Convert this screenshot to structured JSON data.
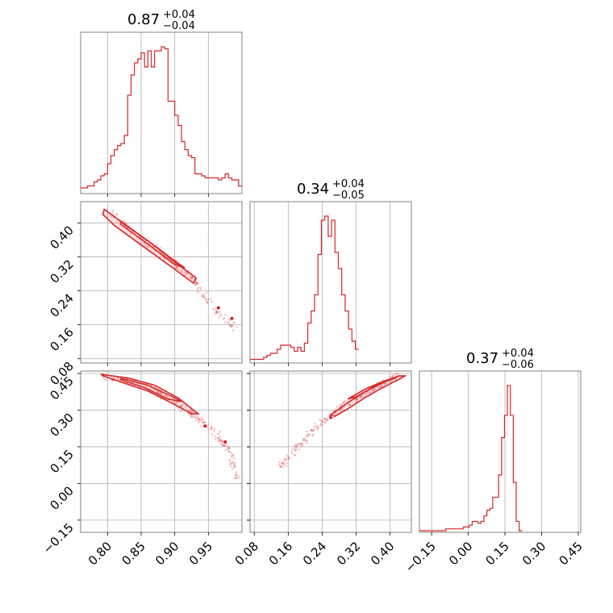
{
  "chart_data": {
    "type": "corner",
    "color": "#d62728",
    "parameters": [
      {
        "index": 0,
        "title": {
          "value": "0.87",
          "plus": "+0.04",
          "minus": "−0.04"
        },
        "range": [
          0.76,
          1.0
        ],
        "ticks": [
          0.8,
          0.85,
          0.9,
          0.95
        ],
        "tick_labels": [
          "0.80",
          "0.85",
          "0.90",
          "0.95"
        ],
        "hist_edges_start": 0.76,
        "hist_edge_step": 0.005,
        "hist_counts": [
          2,
          2,
          3,
          3,
          5,
          6,
          8,
          9,
          14,
          18,
          21,
          23,
          24,
          28,
          48,
          58,
          64,
          66,
          69,
          62,
          70,
          62,
          70,
          70,
          72,
          71,
          45,
          45,
          38,
          33,
          25,
          21,
          18,
          17,
          9,
          9,
          8,
          7,
          7,
          7,
          7,
          6,
          7,
          9,
          7,
          6,
          6,
          3
        ]
      },
      {
        "index": 1,
        "title": {
          "value": "0.34",
          "plus": "+0.04",
          "minus": "−0.05"
        },
        "range": [
          0.07,
          0.45
        ],
        "ticks": [
          0.08,
          0.16,
          0.24,
          0.32,
          0.4
        ],
        "tick_labels": [
          "0.08",
          "0.16",
          "0.24",
          "0.32",
          "0.40"
        ],
        "hist_edges_start": 0.07,
        "hist_edge_step": 0.008,
        "hist_counts": [
          1,
          1,
          1,
          1,
          2,
          3,
          4,
          4,
          6,
          8,
          8,
          8,
          7,
          5,
          7,
          5,
          9,
          19,
          25,
          33,
          53,
          70,
          72,
          62,
          70,
          54,
          46,
          33,
          25,
          16,
          10,
          6
        ]
      },
      {
        "index": 2,
        "title": {
          "value": "0.37",
          "plus": "+0.04",
          "minus": "−0.06"
        },
        "range": [
          -0.2,
          0.46
        ],
        "ticks": [
          -0.15,
          0.0,
          0.15,
          0.3,
          0.45
        ],
        "tick_labels": [
          "−0.15",
          "0.00",
          "0.15",
          "0.30",
          "0.45"
        ],
        "hist_edges_start": -0.2,
        "hist_edge_step": 0.012,
        "hist_counts": [
          0,
          0,
          0,
          0,
          0,
          0,
          0,
          0,
          0,
          1,
          1,
          1,
          1,
          1,
          1,
          2,
          2,
          3,
          5,
          5,
          4,
          5,
          8,
          11,
          12,
          18,
          18,
          30,
          50,
          62,
          78,
          62,
          26,
          5,
          0
        ]
      }
    ],
    "pairs": [
      {
        "x": 0,
        "y": 1,
        "center_line": [
          [
            0.8,
            0.43
          ],
          [
            0.85,
            0.365
          ],
          [
            0.88,
            0.33
          ],
          [
            0.9,
            0.305
          ],
          [
            0.93,
            0.26
          ],
          [
            0.96,
            0.195
          ],
          [
            0.99,
            0.15
          ]
        ],
        "contours": [
          [
            [
              0.795,
              0.432
            ],
            [
              0.83,
              0.392
            ],
            [
              0.87,
              0.346
            ],
            [
              0.905,
              0.302
            ],
            [
              0.932,
              0.27
            ],
            [
              0.928,
              0.258
            ],
            [
              0.89,
              0.302
            ],
            [
              0.85,
              0.348
            ],
            [
              0.81,
              0.394
            ],
            [
              0.793,
              0.42
            ]
          ],
          [
            [
              0.82,
              0.402
            ],
            [
              0.86,
              0.358
            ],
            [
              0.9,
              0.31
            ],
            [
              0.915,
              0.294
            ],
            [
              0.9,
              0.302
            ],
            [
              0.86,
              0.35
            ],
            [
              0.82,
              0.396
            ]
          ]
        ],
        "dots": [
          [
            0.965,
            0.2
          ],
          [
            0.985,
            0.175
          ]
        ]
      },
      {
        "x": 0,
        "y": 2,
        "center_line": [
          [
            0.79,
            0.44
          ],
          [
            0.83,
            0.42
          ],
          [
            0.87,
            0.385
          ],
          [
            0.9,
            0.33
          ],
          [
            0.93,
            0.275
          ],
          [
            0.96,
            0.21
          ],
          [
            0.98,
            0.14
          ],
          [
            0.995,
            0.0
          ]
        ],
        "contours": [
          [
            [
              0.79,
              0.446
            ],
            [
              0.83,
              0.432
            ],
            [
              0.87,
              0.402
            ],
            [
              0.905,
              0.35
            ],
            [
              0.935,
              0.285
            ],
            [
              0.925,
              0.285
            ],
            [
              0.895,
              0.33
            ],
            [
              0.86,
              0.378
            ],
            [
              0.82,
              0.415
            ],
            [
              0.795,
              0.438
            ]
          ],
          [
            [
              0.82,
              0.43
            ],
            [
              0.86,
              0.402
            ],
            [
              0.9,
              0.35
            ],
            [
              0.91,
              0.335
            ],
            [
              0.89,
              0.345
            ],
            [
              0.855,
              0.392
            ],
            [
              0.82,
              0.424
            ]
          ]
        ],
        "dots": [
          [
            0.945,
            0.235
          ],
          [
            0.975,
            0.17
          ]
        ]
      },
      {
        "x": 1,
        "y": 2,
        "center_line": [
          [
            0.14,
            0.06
          ],
          [
            0.18,
            0.15
          ],
          [
            0.22,
            0.22
          ],
          [
            0.26,
            0.28
          ],
          [
            0.3,
            0.33
          ],
          [
            0.34,
            0.37
          ],
          [
            0.38,
            0.405
          ],
          [
            0.42,
            0.44
          ]
        ],
        "contours": [
          [
            [
              0.26,
              0.28
            ],
            [
              0.3,
              0.33
            ],
            [
              0.34,
              0.375
            ],
            [
              0.38,
              0.41
            ],
            [
              0.42,
              0.44
            ],
            [
              0.435,
              0.44
            ],
            [
              0.42,
              0.425
            ],
            [
              0.38,
              0.39
            ],
            [
              0.34,
              0.35
            ],
            [
              0.3,
              0.305
            ],
            [
              0.27,
              0.275
            ]
          ],
          [
            [
              0.3,
              0.345
            ],
            [
              0.34,
              0.385
            ],
            [
              0.38,
              0.415
            ],
            [
              0.42,
              0.44
            ],
            [
              0.4,
              0.425
            ],
            [
              0.36,
              0.395
            ],
            [
              0.32,
              0.355
            ]
          ]
        ],
        "dots": [
          [
            0.26,
            0.27
          ]
        ]
      }
    ]
  }
}
